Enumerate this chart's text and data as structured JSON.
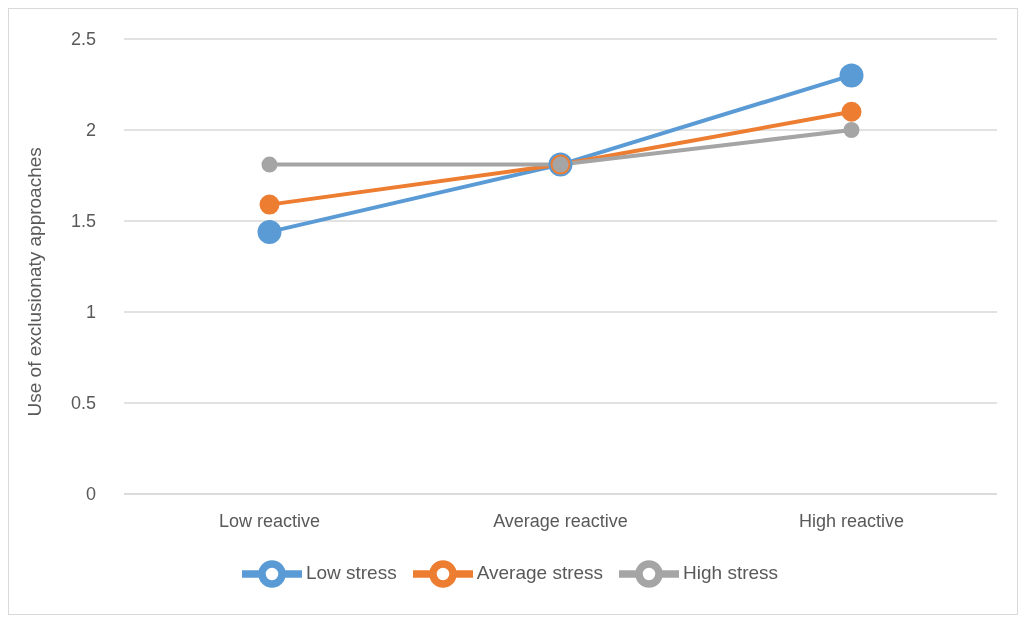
{
  "chart_data": {
    "type": "line",
    "ylabel": "Use of exclusionaty approaches",
    "categories": [
      "Low reactive",
      "Average reactive",
      "High reactive"
    ],
    "series": [
      {
        "name": "Low stress",
        "color": "#5b9bd5",
        "values": [
          1.44,
          1.81,
          2.3
        ]
      },
      {
        "name": "Average stress",
        "color": "#ed7d31",
        "values": [
          1.59,
          1.81,
          2.1
        ]
      },
      {
        "name": "High stress",
        "color": "#a5a5a5",
        "values": [
          1.81,
          1.81,
          2.0
        ]
      }
    ],
    "ylim": [
      0,
      2.5
    ],
    "yticks": [
      0,
      0.5,
      1,
      1.5,
      2,
      2.5
    ],
    "grid": "y",
    "legend": "bottom",
    "marker": "circle",
    "line_style": "solid"
  }
}
